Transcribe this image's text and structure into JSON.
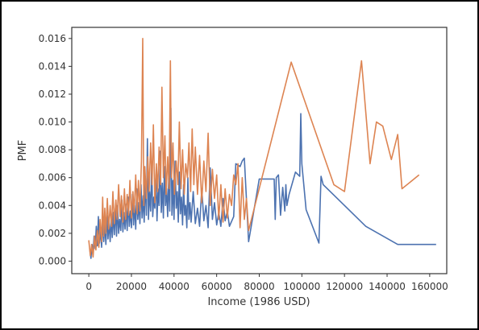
{
  "chart_data": {
    "type": "line",
    "title": "",
    "xlabel": "Income (1986 USD)",
    "ylabel": "PMF",
    "xlim": [
      -8000,
      168000
    ],
    "ylim": [
      -0.0009,
      0.0168
    ],
    "grid": false,
    "legend": "none",
    "x_ticks": [
      0,
      20000,
      40000,
      60000,
      80000,
      100000,
      120000,
      140000,
      160000
    ],
    "x_tick_labels": [
      "0",
      "20000",
      "40000",
      "60000",
      "80000",
      "100000",
      "120000",
      "140000",
      "160000"
    ],
    "y_ticks": [
      0.0,
      0.002,
      0.004,
      0.006,
      0.008,
      0.01,
      0.012,
      0.014,
      0.016
    ],
    "y_tick_labels": [
      "0.000",
      "0.002",
      "0.004",
      "0.006",
      "0.008",
      "0.010",
      "0.012",
      "0.014",
      "0.016"
    ],
    "series": [
      {
        "color": "#4c72b0",
        "points": [
          [
            500,
            0.0008
          ],
          [
            1000,
            0.0002
          ],
          [
            1500,
            0.0012
          ],
          [
            2000,
            0.0006
          ],
          [
            2500,
            0.0018
          ],
          [
            3000,
            0.0009
          ],
          [
            3500,
            0.0025
          ],
          [
            4000,
            0.0011
          ],
          [
            4500,
            0.0032
          ],
          [
            5000,
            0.0013
          ],
          [
            5500,
            0.0022
          ],
          [
            6000,
            0.001
          ],
          [
            6500,
            0.003
          ],
          [
            7000,
            0.0014
          ],
          [
            7500,
            0.0026
          ],
          [
            8000,
            0.0012
          ],
          [
            8500,
            0.0033
          ],
          [
            9000,
            0.0016
          ],
          [
            9500,
            0.0028
          ],
          [
            10000,
            0.0014
          ],
          [
            10500,
            0.0031
          ],
          [
            11000,
            0.0017
          ],
          [
            11500,
            0.0035
          ],
          [
            12000,
            0.0019
          ],
          [
            12500,
            0.0038
          ],
          [
            13000,
            0.0018
          ],
          [
            13500,
            0.004
          ],
          [
            14000,
            0.002
          ],
          [
            14500,
            0.003
          ],
          [
            15000,
            0.0022
          ],
          [
            15500,
            0.0044
          ],
          [
            16000,
            0.0021
          ],
          [
            16500,
            0.0035
          ],
          [
            17000,
            0.0023
          ],
          [
            17500,
            0.0041
          ],
          [
            18000,
            0.0022
          ],
          [
            18500,
            0.0046
          ],
          [
            19000,
            0.0025
          ],
          [
            19500,
            0.0036
          ],
          [
            20000,
            0.0024
          ],
          [
            20500,
            0.0048
          ],
          [
            21000,
            0.0026
          ],
          [
            21500,
            0.004
          ],
          [
            22000,
            0.0023
          ],
          [
            22500,
            0.0052
          ],
          [
            23000,
            0.003
          ],
          [
            23500,
            0.0042
          ],
          [
            24000,
            0.0027
          ],
          [
            24500,
            0.0055
          ],
          [
            25000,
            0.0031
          ],
          [
            25500,
            0.0047
          ],
          [
            26000,
            0.0028
          ],
          [
            26500,
            0.006
          ],
          [
            27000,
            0.0033
          ],
          [
            27500,
            0.0088
          ],
          [
            28000,
            0.003
          ],
          [
            28500,
            0.005
          ],
          [
            29000,
            0.0036
          ],
          [
            29500,
            0.007
          ],
          [
            30000,
            0.0032
          ],
          [
            30500,
            0.0046
          ],
          [
            31000,
            0.0038
          ],
          [
            31500,
            0.0062
          ],
          [
            32000,
            0.0029
          ],
          [
            32500,
            0.0052
          ],
          [
            33000,
            0.004
          ],
          [
            33500,
            0.0079
          ],
          [
            34000,
            0.0035
          ],
          [
            34500,
            0.0056
          ],
          [
            35000,
            0.0031
          ],
          [
            35500,
            0.0068
          ],
          [
            36000,
            0.004
          ],
          [
            36500,
            0.0052
          ],
          [
            37000,
            0.0032
          ],
          [
            37500,
            0.006
          ],
          [
            38000,
            0.0036
          ],
          [
            38500,
            0.011
          ],
          [
            39000,
            0.0033
          ],
          [
            39500,
            0.0058
          ],
          [
            40000,
            0.003
          ],
          [
            40500,
            0.0072
          ],
          [
            41000,
            0.0038
          ],
          [
            41500,
            0.005
          ],
          [
            42000,
            0.0028
          ],
          [
            42500,
            0.0064
          ],
          [
            43000,
            0.0034
          ],
          [
            43500,
            0.0046
          ],
          [
            44000,
            0.0026
          ],
          [
            44500,
            0.0055
          ],
          [
            45000,
            0.0033
          ],
          [
            45500,
            0.004
          ],
          [
            46000,
            0.0024
          ],
          [
            46500,
            0.006
          ],
          [
            47000,
            0.003
          ],
          [
            47500,
            0.0042
          ],
          [
            48000,
            0.0028
          ],
          [
            49000,
            0.005
          ],
          [
            50000,
            0.0027
          ],
          [
            51000,
            0.0038
          ],
          [
            52000,
            0.0025
          ],
          [
            53000,
            0.0052
          ],
          [
            54000,
            0.0029
          ],
          [
            55000,
            0.004
          ],
          [
            56000,
            0.0024
          ],
          [
            57000,
            0.0067
          ],
          [
            58000,
            0.003
          ],
          [
            59000,
            0.0042
          ],
          [
            60000,
            0.0026
          ],
          [
            61000,
            0.0035
          ],
          [
            62000,
            0.0025
          ],
          [
            63000,
            0.0045
          ],
          [
            64000,
            0.0029
          ],
          [
            65000,
            0.0036
          ],
          [
            66000,
            0.0025
          ],
          [
            68000,
            0.0032
          ],
          [
            69000,
            0.007
          ],
          [
            71000,
            0.0068
          ],
          [
            72000,
            0.0072
          ],
          [
            73000,
            0.0074
          ],
          [
            75000,
            0.0014
          ],
          [
            80000,
            0.0059
          ],
          [
            85000,
            0.0059
          ],
          [
            87000,
            0.0059
          ],
          [
            87500,
            0.003
          ],
          [
            88000,
            0.006
          ],
          [
            89000,
            0.0062
          ],
          [
            90000,
            0.0033
          ],
          [
            91000,
            0.0053
          ],
          [
            92000,
            0.0036
          ],
          [
            92500,
            0.0055
          ],
          [
            93000,
            0.004
          ],
          [
            94000,
            0.0048
          ],
          [
            97000,
            0.0064
          ],
          [
            99000,
            0.0061
          ],
          [
            99500,
            0.0106
          ],
          [
            100000,
            0.007
          ],
          [
            102000,
            0.0037
          ],
          [
            108000,
            0.0013
          ],
          [
            109000,
            0.0061
          ],
          [
            110000,
            0.0055
          ],
          [
            130000,
            0.0025
          ],
          [
            145000,
            0.0012
          ],
          [
            163000,
            0.0012
          ]
        ]
      },
      {
        "color": "#dd8452",
        "points": [
          [
            0,
            0.0015
          ],
          [
            700,
            0.0004
          ],
          [
            1300,
            0.0012
          ],
          [
            2000,
            0.0003
          ],
          [
            2700,
            0.0018
          ],
          [
            3300,
            0.0008
          ],
          [
            4000,
            0.0022
          ],
          [
            4700,
            0.001
          ],
          [
            5300,
            0.003
          ],
          [
            6000,
            0.0014
          ],
          [
            6500,
            0.0046
          ],
          [
            7000,
            0.0018
          ],
          [
            7500,
            0.0038
          ],
          [
            8000,
            0.002
          ],
          [
            8700,
            0.0045
          ],
          [
            9300,
            0.0023
          ],
          [
            10000,
            0.004
          ],
          [
            10700,
            0.0025
          ],
          [
            11300,
            0.005
          ],
          [
            12000,
            0.0027
          ],
          [
            12700,
            0.0044
          ],
          [
            13300,
            0.003
          ],
          [
            14000,
            0.0055
          ],
          [
            14700,
            0.0032
          ],
          [
            15300,
            0.0047
          ],
          [
            16000,
            0.0028
          ],
          [
            16700,
            0.0052
          ],
          [
            17300,
            0.003
          ],
          [
            18000,
            0.0048
          ],
          [
            18700,
            0.0033
          ],
          [
            19300,
            0.0058
          ],
          [
            20000,
            0.0031
          ],
          [
            20700,
            0.005
          ],
          [
            21300,
            0.0035
          ],
          [
            22000,
            0.0062
          ],
          [
            22700,
            0.0034
          ],
          [
            23300,
            0.0058
          ],
          [
            24000,
            0.0036
          ],
          [
            24700,
            0.0072
          ],
          [
            25300,
            0.016
          ],
          [
            25800,
            0.004
          ],
          [
            26300,
            0.0068
          ],
          [
            27000,
            0.0045
          ],
          [
            27700,
            0.0075
          ],
          [
            28300,
            0.005
          ],
          [
            29000,
            0.0085
          ],
          [
            29700,
            0.0055
          ],
          [
            30300,
            0.0098
          ],
          [
            31000,
            0.0042
          ],
          [
            31700,
            0.007
          ],
          [
            32300,
            0.005
          ],
          [
            33000,
            0.0082
          ],
          [
            33700,
            0.0055
          ],
          [
            34300,
            0.0125
          ],
          [
            35000,
            0.006
          ],
          [
            35700,
            0.009
          ],
          [
            36300,
            0.0048
          ],
          [
            37000,
            0.0075
          ],
          [
            37700,
            0.0052
          ],
          [
            38300,
            0.0144
          ],
          [
            38800,
            0.006
          ],
          [
            39500,
            0.0085
          ],
          [
            40200,
            0.0048
          ],
          [
            41000,
            0.0072
          ],
          [
            41800,
            0.0055
          ],
          [
            42500,
            0.01
          ],
          [
            43300,
            0.0052
          ],
          [
            44000,
            0.008
          ],
          [
            44800,
            0.0048
          ],
          [
            45500,
            0.007
          ],
          [
            46300,
            0.006
          ],
          [
            47000,
            0.0085
          ],
          [
            47800,
            0.005
          ],
          [
            48500,
            0.0095
          ],
          [
            49300,
            0.0055
          ],
          [
            50000,
            0.0082
          ],
          [
            51000,
            0.0048
          ],
          [
            52000,
            0.0076
          ],
          [
            53000,
            0.0042
          ],
          [
            54000,
            0.0072
          ],
          [
            55000,
            0.005
          ],
          [
            56000,
            0.0092
          ],
          [
            57000,
            0.004
          ],
          [
            58000,
            0.0066
          ],
          [
            59000,
            0.0045
          ],
          [
            60000,
            0.0062
          ],
          [
            61000,
            0.003
          ],
          [
            62000,
            0.0055
          ],
          [
            63000,
            0.0028
          ],
          [
            64000,
            0.0052
          ],
          [
            65000,
            0.0031
          ],
          [
            66000,
            0.0048
          ],
          [
            67000,
            0.004
          ],
          [
            68000,
            0.0062
          ],
          [
            69000,
            0.0055
          ],
          [
            70000,
            0.007
          ],
          [
            71000,
            0.0024
          ],
          [
            72000,
            0.006
          ],
          [
            73000,
            0.003
          ],
          [
            74000,
            0.0045
          ],
          [
            75000,
            0.0022
          ],
          [
            95000,
            0.0143
          ],
          [
            115000,
            0.0055
          ],
          [
            120000,
            0.005
          ],
          [
            128000,
            0.0144
          ],
          [
            132000,
            0.007
          ],
          [
            135000,
            0.01
          ],
          [
            138000,
            0.0097
          ],
          [
            142000,
            0.0073
          ],
          [
            145000,
            0.0091
          ],
          [
            147000,
            0.0052
          ],
          [
            155000,
            0.0062
          ]
        ]
      }
    ]
  }
}
